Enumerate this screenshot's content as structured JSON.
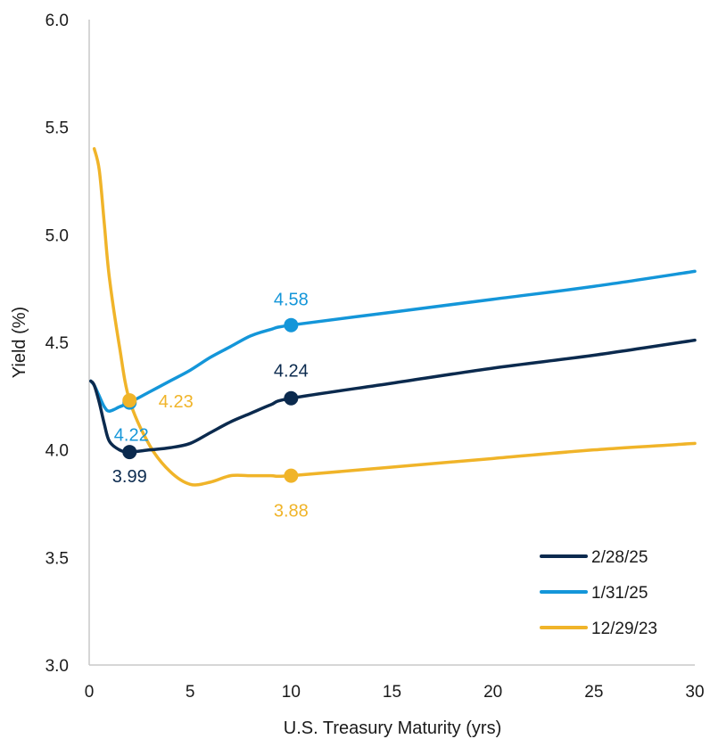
{
  "chart_data": {
    "type": "line",
    "title": "",
    "xlabel": "U.S. Treasury  Maturity (yrs)",
    "ylabel": "Yield (%)",
    "xlim": [
      0,
      30
    ],
    "ylim": [
      3.0,
      6.0
    ],
    "x_ticks": [
      "0",
      "5",
      "10",
      "15",
      "20",
      "25",
      "30"
    ],
    "y_ticks": [
      "3.0",
      "3.5",
      "4.0",
      "4.5",
      "5.0",
      "5.5",
      "6.0"
    ],
    "grid": false,
    "legend_position": "bottom-right",
    "series": [
      {
        "name": "2/28/25",
        "color": "#0b2a4e",
        "x": [
          0.08,
          0.25,
          0.5,
          0.75,
          1,
          1.5,
          2,
          3,
          4,
          5,
          6,
          7,
          8,
          9,
          10,
          15,
          20,
          25,
          30
        ],
        "y": [
          4.32,
          4.3,
          4.22,
          4.12,
          4.04,
          4.0,
          3.99,
          4.0,
          4.01,
          4.03,
          4.08,
          4.13,
          4.17,
          4.21,
          4.24,
          4.31,
          4.38,
          4.44,
          4.51
        ],
        "markers": [
          {
            "x": 2,
            "y": 3.99,
            "label": "3.99"
          },
          {
            "x": 10,
            "y": 4.24,
            "label": "4.24"
          }
        ]
      },
      {
        "name": "1/31/25",
        "color": "#1496d9",
        "x": [
          0.08,
          0.25,
          0.5,
          0.75,
          1,
          1.5,
          2,
          3,
          4,
          5,
          6,
          7,
          8,
          9,
          10,
          15,
          20,
          25,
          30
        ],
        "y": [
          4.32,
          4.3,
          4.25,
          4.2,
          4.18,
          4.2,
          4.22,
          4.27,
          4.32,
          4.37,
          4.43,
          4.48,
          4.53,
          4.56,
          4.58,
          4.64,
          4.7,
          4.76,
          4.83
        ],
        "markers": [
          {
            "x": 2,
            "y": 4.22,
            "label": "4.22"
          },
          {
            "x": 10,
            "y": 4.58,
            "label": "4.58"
          }
        ]
      },
      {
        "name": "12/29/23",
        "color": "#f0b429",
        "x": [
          0.25,
          0.5,
          0.75,
          1,
          1.5,
          2,
          3,
          4,
          5,
          6,
          7,
          8,
          9,
          10,
          15,
          20,
          25,
          30
        ],
        "y": [
          5.4,
          5.3,
          5.05,
          4.8,
          4.48,
          4.23,
          4.02,
          3.9,
          3.84,
          3.85,
          3.88,
          3.88,
          3.88,
          3.88,
          3.92,
          3.96,
          4.0,
          4.03
        ],
        "markers": [
          {
            "x": 2,
            "y": 4.23,
            "label": "4.23"
          },
          {
            "x": 10,
            "y": 3.88,
            "label": "3.88"
          }
        ]
      }
    ]
  }
}
